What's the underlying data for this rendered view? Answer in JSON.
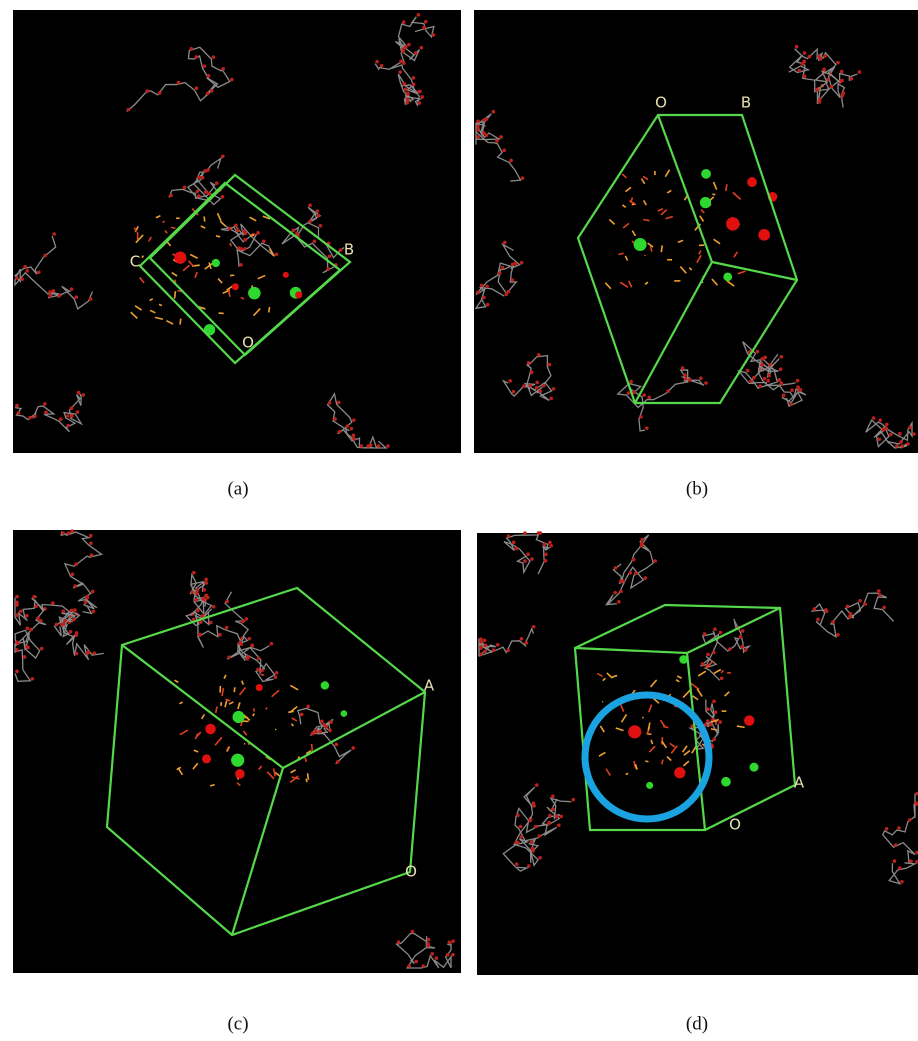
{
  "panels": [
    {
      "caption": "(a)",
      "labels": [
        "C",
        "B",
        "O"
      ]
    },
    {
      "caption": "(b)",
      "labels": [
        "O",
        "B"
      ]
    },
    {
      "caption": "(c)",
      "labels": [
        "A",
        "O"
      ]
    },
    {
      "caption": "(d)",
      "labels": [
        "A",
        "O"
      ]
    }
  ]
}
